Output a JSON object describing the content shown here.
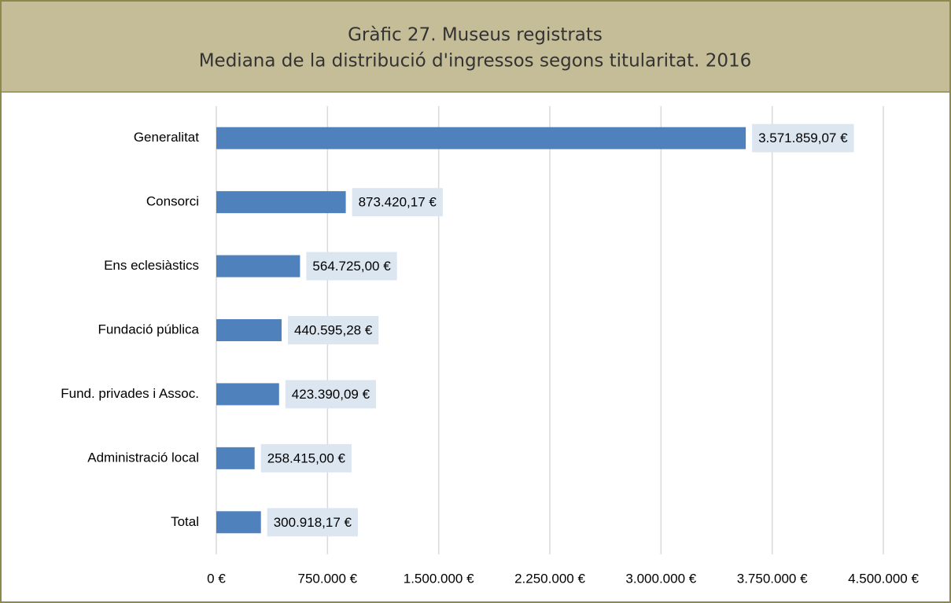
{
  "chart_data": {
    "type": "bar",
    "orientation": "horizontal",
    "title": "Gràfic 27. Museus registrats",
    "subtitle": "Mediana de la distribució d'ingressos segons titularitat. 2016",
    "categories": [
      "Generalitat",
      "Consorci",
      "Ens eclesiàstics",
      "Fundació pública",
      "Fund. privades i Assoc.",
      "Administració local",
      "Total"
    ],
    "values": [
      3571859.07,
      873420.17,
      564725.0,
      440595.28,
      423390.09,
      258415.0,
      300918.17
    ],
    "value_labels": [
      "3.571.859,07 €",
      "873.420,17 €",
      "564.725,00 €",
      "440.595,28 €",
      "423.390,09 €",
      "258.415,00 €",
      "300.918,17 €"
    ],
    "color": "#4f81bd",
    "xlim": [
      0,
      4500000
    ],
    "xticks": [
      {
        "value": 0,
        "label": "0 €"
      },
      {
        "value": 750000,
        "label": "750.000 €"
      },
      {
        "value": 1500000,
        "label": "1.500.000 €"
      },
      {
        "value": 2250000,
        "label": "2.250.000 €"
      },
      {
        "value": 3000000,
        "label": "3.000.000 €"
      },
      {
        "value": 3750000,
        "label": "3.750.000 €"
      },
      {
        "value": 4500000,
        "label": "4.500.000 €"
      }
    ],
    "grid": true
  }
}
